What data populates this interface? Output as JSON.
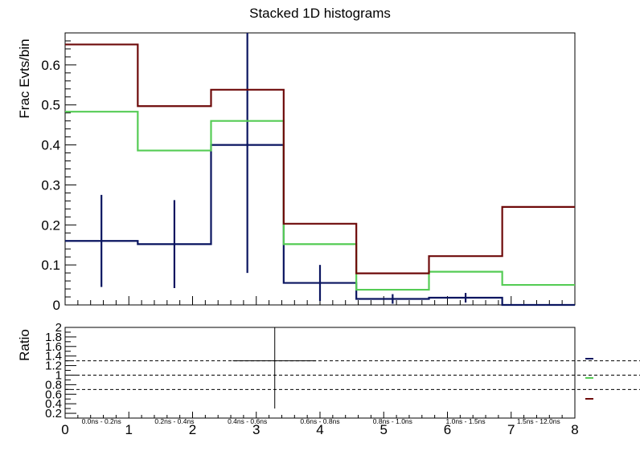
{
  "chart_data": [
    {
      "type": "line",
      "title": "Stacked 1D histograms",
      "ylabel": "Frac Evts/bin",
      "xlim": [
        0,
        8
      ],
      "ylim": [
        0,
        0.68
      ],
      "y_ticks": [
        "0",
        "0.1",
        "0.2",
        "0.3",
        "0.4",
        "0.5",
        "0.6"
      ],
      "bin_edges": [
        0,
        1.14,
        2.29,
        3.43,
        4.57,
        5.71,
        6.86,
        8
      ],
      "series": [
        {
          "color": "#0a1560",
          "values": [
            0.16,
            0.152,
            0.4,
            0.055,
            0.015,
            0.018,
            0.0
          ],
          "errors": [
            0.115,
            0.11,
            0.32,
            0.045,
            0.012,
            0.012,
            0.0
          ]
        },
        {
          "color": "#55cc55",
          "values": [
            0.483,
            0.386,
            0.46,
            0.152,
            0.038,
            0.083,
            0.05
          ]
        },
        {
          "color": "#6e0a0a",
          "values": [
            0.651,
            0.497,
            0.538,
            0.203,
            0.079,
            0.122,
            0.245
          ]
        }
      ],
      "bin_labels": [
        "0.0ns - 0.2ns",
        "0.2ns - 0.4ns",
        "0.4ns - 0.6ns",
        "0.6ns - 0.8ns",
        "0.8ns - 1.0ns",
        "1.0ns - 1.5ns",
        "1.5ns - 12.0ns"
      ]
    },
    {
      "type": "line",
      "ylabel": "Ratio",
      "xlim": [
        0,
        8
      ],
      "ylim": [
        0.1,
        2.0
      ],
      "x_ticks": [
        "0",
        "1",
        "2",
        "3",
        "4",
        "5",
        "6",
        "7",
        "8"
      ],
      "y_ticks": [
        "0.2",
        "0.4",
        "0.6",
        "0.8",
        "1",
        "1.2",
        "1.4",
        "1.6",
        "1.8",
        "2"
      ],
      "ref_lines": [
        0.7,
        1.0,
        1.3
      ],
      "point": {
        "x": 3.29,
        "y": 1.3,
        "x_lo": 2.63,
        "x_hi": 3.94,
        "y_lo": 0.3,
        "y_hi": 2.0
      },
      "legend_colors": [
        "#0a1560",
        "#55cc55",
        "#6e0a0a"
      ]
    }
  ]
}
